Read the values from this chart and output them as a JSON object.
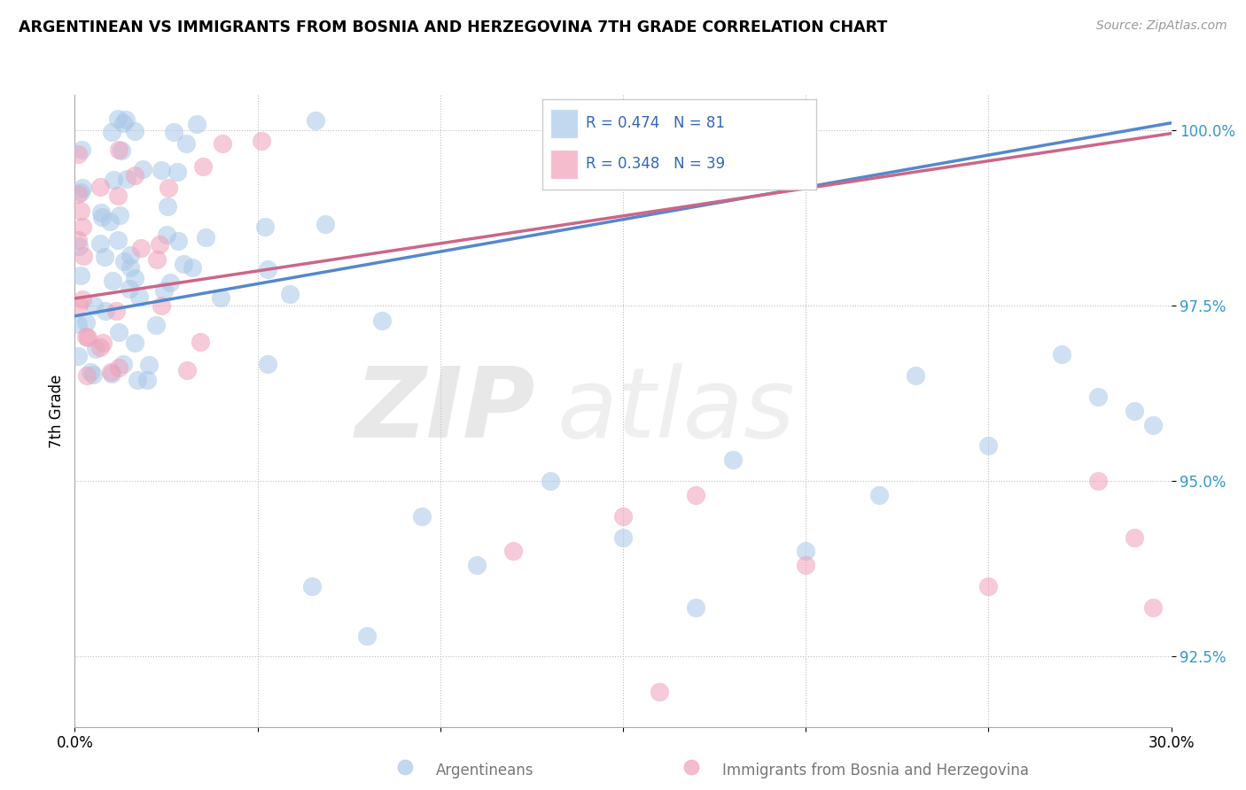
{
  "title": "ARGENTINEAN VS IMMIGRANTS FROM BOSNIA AND HERZEGOVINA 7TH GRADE CORRELATION CHART",
  "source": "Source: ZipAtlas.com",
  "ylabel_label": "7th Grade",
  "legend_blue_r": "R = 0.474",
  "legend_blue_n": "N = 81",
  "legend_pink_r": "R = 0.348",
  "legend_pink_n": "N = 39",
  "legend_blue_label": "Argentineans",
  "legend_pink_label": "Immigrants from Bosnia and Herzegovina",
  "blue_color": "#a8c8e8",
  "pink_color": "#f0a0b8",
  "blue_line_color": "#5588cc",
  "pink_line_color": "#cc6688",
  "xlim": [
    0.0,
    0.3
  ],
  "ylim": [
    0.915,
    1.005
  ],
  "yticks": [
    0.925,
    0.95,
    0.975,
    1.0
  ],
  "ytick_labels": [
    "92.5%",
    "95.0%",
    "97.5%",
    "100.0%"
  ],
  "blue_trend_x0": 0.0,
  "blue_trend_y0": 0.9735,
  "blue_trend_x1": 0.3,
  "blue_trend_y1": 1.001,
  "pink_trend_x0": 0.0,
  "pink_trend_y0": 0.976,
  "pink_trend_x1": 0.3,
  "pink_trend_y1": 0.9995
}
